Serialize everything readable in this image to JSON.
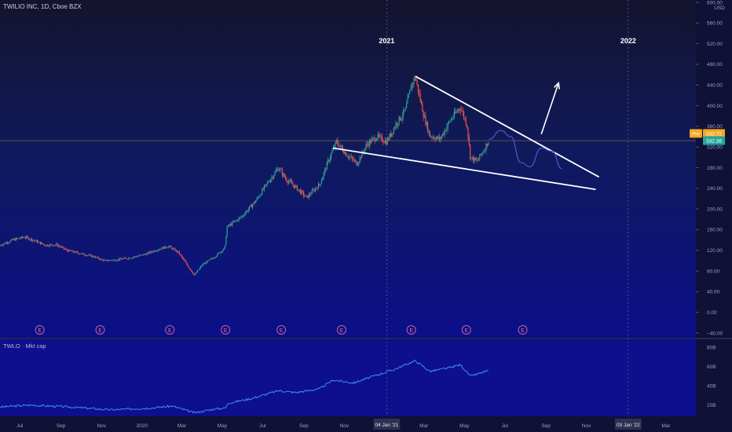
{
  "header": {
    "symbol_line": "TWILIO INC, 1D, Cboe BZX",
    "currency": "USD"
  },
  "indicator": {
    "label": "TWLO · Mkt cap",
    "color": "#3f8df0",
    "y_ticks": [
      "80B",
      "60B",
      "40B",
      "20B"
    ]
  },
  "chart_data": {
    "type": "candlestick",
    "title": "TWILIO INC, 1D, Cboe BZX",
    "currency": "USD",
    "y_ticks": [
      600,
      560,
      520,
      480,
      440,
      400,
      360,
      320,
      280,
      240,
      200,
      160,
      120,
      80,
      40,
      0,
      -40
    ],
    "y_tick_labels": [
      "600.00",
      "560.00",
      "520.00",
      "480.00",
      "440.00",
      "400.00",
      "360.00",
      "320.00",
      "280.00",
      "240.00",
      "200.00",
      "160.00",
      "120.00",
      "80.00",
      "40.00",
      "0.00",
      "−40.00"
    ],
    "ylim": [
      -40,
      605
    ],
    "x_range": [
      "2019-06-01",
      "2022-04-15"
    ],
    "x_ticks": [
      {
        "date": "2019-07-01",
        "label": "Jul"
      },
      {
        "date": "2019-09-01",
        "label": "Sep"
      },
      {
        "date": "2019-11-01",
        "label": "Nov"
      },
      {
        "date": "2020-01-01",
        "label": "2020"
      },
      {
        "date": "2020-03-01",
        "label": "Mar"
      },
      {
        "date": "2020-05-01",
        "label": "May"
      },
      {
        "date": "2020-07-01",
        "label": "Jul"
      },
      {
        "date": "2020-09-01",
        "label": "Sep"
      },
      {
        "date": "2020-11-01",
        "label": "Nov"
      },
      {
        "date": "2021-03-01",
        "label": "Mar"
      },
      {
        "date": "2021-05-01",
        "label": "May"
      },
      {
        "date": "2021-07-01",
        "label": "Jul"
      },
      {
        "date": "2021-09-01",
        "label": "Sep"
      },
      {
        "date": "2021-11-01",
        "label": "Nov"
      },
      {
        "date": "2022-03-01",
        "label": "Mar"
      }
    ],
    "x_highlight_ticks": [
      {
        "date": "2021-01-04",
        "label": "04 Jan '21"
      },
      {
        "date": "2022-01-03",
        "label": "03 Jan '22"
      }
    ],
    "year_labels": [
      {
        "date": "2021-01-04",
        "label": "2021"
      },
      {
        "date": "2022-01-03",
        "label": "2022"
      }
    ],
    "price_path": [
      [
        "2019-06-01",
        130
      ],
      [
        "2019-06-20",
        140
      ],
      [
        "2019-07-08",
        146
      ],
      [
        "2019-07-25",
        138
      ],
      [
        "2019-08-08",
        130
      ],
      [
        "2019-08-25",
        131
      ],
      [
        "2019-09-10",
        120
      ],
      [
        "2019-09-30",
        114
      ],
      [
        "2019-10-20",
        108
      ],
      [
        "2019-11-05",
        100
      ],
      [
        "2019-11-25",
        102
      ],
      [
        "2019-12-15",
        106
      ],
      [
        "2020-01-05",
        112
      ],
      [
        "2020-01-25",
        122
      ],
      [
        "2020-02-10",
        128
      ],
      [
        "2020-02-25",
        116
      ],
      [
        "2020-03-10",
        90
      ],
      [
        "2020-03-20",
        72
      ],
      [
        "2020-04-01",
        92
      ],
      [
        "2020-04-20",
        108
      ],
      [
        "2020-05-05",
        125
      ],
      [
        "2020-05-08",
        165
      ],
      [
        "2020-05-30",
        185
      ],
      [
        "2020-06-20",
        215
      ],
      [
        "2020-07-08",
        250
      ],
      [
        "2020-07-25",
        280
      ],
      [
        "2020-08-05",
        258
      ],
      [
        "2020-08-20",
        242
      ],
      [
        "2020-09-05",
        222
      ],
      [
        "2020-09-25",
        248
      ],
      [
        "2020-10-10",
        300
      ],
      [
        "2020-10-20",
        330
      ],
      [
        "2020-11-05",
        305
      ],
      [
        "2020-11-20",
        288
      ],
      [
        "2020-12-05",
        325
      ],
      [
        "2020-12-20",
        340
      ],
      [
        "2021-01-04",
        330
      ],
      [
        "2021-01-18",
        365
      ],
      [
        "2021-02-01",
        390
      ],
      [
        "2021-02-10",
        440
      ],
      [
        "2021-02-16",
        455
      ],
      [
        "2021-03-01",
        380
      ],
      [
        "2021-03-10",
        342
      ],
      [
        "2021-03-25",
        335
      ],
      [
        "2021-04-10",
        372
      ],
      [
        "2021-04-25",
        398
      ],
      [
        "2021-05-05",
        362
      ],
      [
        "2021-05-10",
        300
      ],
      [
        "2021-05-20",
        292
      ],
      [
        "2021-06-01",
        318
      ],
      [
        "2021-06-07",
        335
      ]
    ],
    "projection_path": [
      [
        "2021-06-07",
        335
      ],
      [
        "2021-06-25",
        352
      ],
      [
        "2021-07-10",
        340
      ],
      [
        "2021-07-25",
        290
      ],
      [
        "2021-08-08",
        282
      ],
      [
        "2021-08-25",
        318
      ],
      [
        "2021-09-10",
        312
      ],
      [
        "2021-09-25",
        278
      ]
    ],
    "mktcap_path": [
      [
        "2019-06-01",
        18
      ],
      [
        "2019-07-15",
        20
      ],
      [
        "2019-09-15",
        18
      ],
      [
        "2019-11-15",
        15
      ],
      [
        "2020-01-15",
        17
      ],
      [
        "2020-02-15",
        19
      ],
      [
        "2020-03-20",
        12
      ],
      [
        "2020-04-20",
        16
      ],
      [
        "2020-05-06",
        17
      ],
      [
        "2020-05-10",
        22
      ],
      [
        "2020-06-15",
        27
      ],
      [
        "2020-07-25",
        35
      ],
      [
        "2020-08-20",
        33
      ],
      [
        "2020-09-25",
        37
      ],
      [
        "2020-10-15",
        46
      ],
      [
        "2020-11-15",
        43
      ],
      [
        "2020-12-15",
        50
      ],
      [
        "2021-01-15",
        57
      ],
      [
        "2021-02-16",
        66
      ],
      [
        "2021-03-10",
        55
      ],
      [
        "2021-04-10",
        59
      ],
      [
        "2021-04-25",
        62
      ],
      [
        "2021-05-10",
        50
      ],
      [
        "2021-05-25",
        53
      ],
      [
        "2021-06-07",
        56
      ]
    ],
    "mktcap_ylim": [
      10,
      85
    ],
    "current_price": {
      "value": 332.36,
      "label": "332.36"
    },
    "premarket": {
      "value": 332.72,
      "label": "332.72",
      "tag": "Pre"
    },
    "earnings_markers": [
      "2019-07-31",
      "2019-10-30",
      "2020-02-12",
      "2020-05-06",
      "2020-07-29",
      "2020-10-28",
      "2021-02-10",
      "2021-05-04",
      "2021-07-28"
    ],
    "earnings_label": "E",
    "wedge_upper": [
      [
        "2021-02-16",
        457
      ],
      [
        "2021-11-20",
        262
      ]
    ],
    "wedge_lower": [
      [
        "2020-10-15",
        318
      ],
      [
        "2021-11-15",
        238
      ]
    ],
    "arrow": {
      "from": [
        "2021-08-25",
        345
      ],
      "to": [
        "2021-09-20",
        444
      ]
    },
    "colors": {
      "background_top": "#14142e",
      "background_bottom": "#0b0f8a",
      "up": "#26a69a",
      "down": "#ef5350",
      "current_price": "#26a69a",
      "premarket": "#f5a623",
      "wedge": "#ffffff",
      "projection": "#4b54c8"
    }
  }
}
